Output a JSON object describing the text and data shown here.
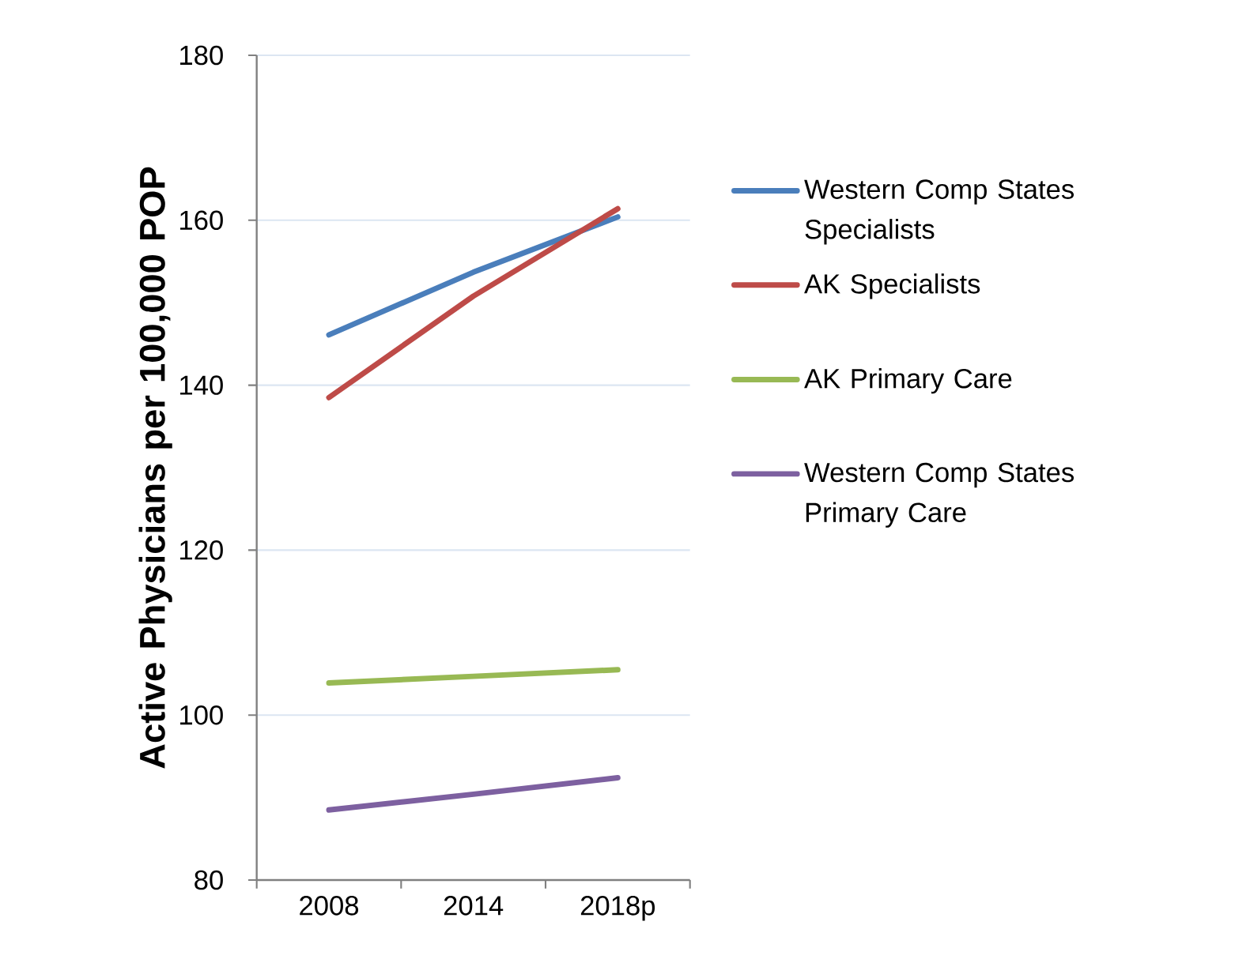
{
  "chart_data": {
    "type": "line",
    "categories": [
      "2008",
      "2014",
      "2018p"
    ],
    "ylabel": "Active Physicians per 100,000 POP",
    "ylim": [
      80,
      180
    ],
    "yticks": [
      80,
      100,
      120,
      140,
      160,
      180
    ],
    "grid": "y",
    "legend": "right",
    "marker": "none",
    "line_style": "solid",
    "series": [
      {
        "name": "Western Comp States Specialists",
        "color": "#4a7ebb",
        "values": [
          146.1,
          153.7,
          160.4
        ]
      },
      {
        "name": "AK Specialists",
        "color": "#be4b48",
        "values": [
          138.5,
          150.8,
          161.4
        ]
      },
      {
        "name": "AK Primary Care",
        "color": "#98b954",
        "values": [
          103.9,
          104.7,
          105.5
        ]
      },
      {
        "name": "Western Comp States Primary Care",
        "color": "#7d60a0",
        "values": [
          88.5,
          90.4,
          92.4
        ]
      }
    ]
  }
}
